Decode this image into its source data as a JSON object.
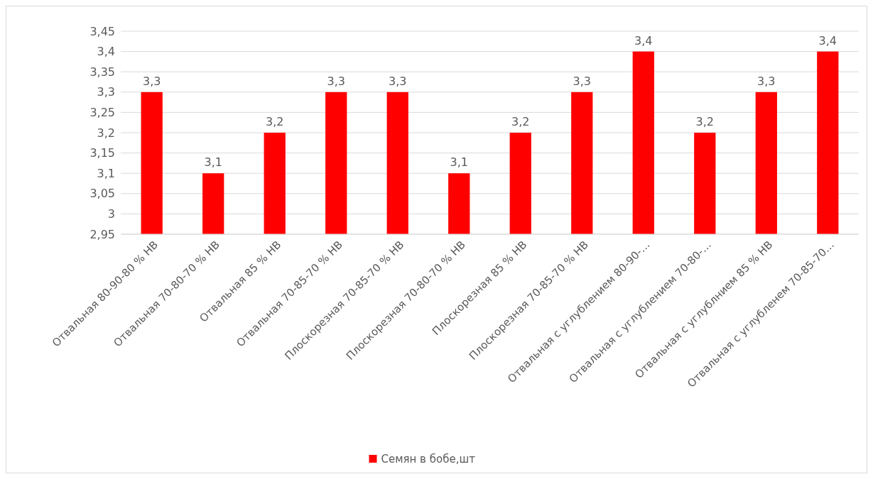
{
  "chart_data": {
    "type": "bar",
    "categories": [
      "Отвальная 80-90-80 % НВ",
      "Отвальная 70-80-70 % НВ",
      "Отвальная 85 % НВ",
      "Отвальная 70-85-70 % НВ",
      "Плоскорезная 70-85-70 % НВ",
      "Плоскорезная 70-80-70 % НВ",
      "Плоскорезная 85 % НВ",
      "Плоскорезная 70-85-70 % НВ",
      "Отвальная с углублением 80-90-…",
      "Отвальная с углублением 70-80-…",
      "Отвальная с углублнием 85 % НВ",
      "Отвальная с углубленем 70-85-70…"
    ],
    "series": [
      {
        "name": "Семян в бобе,шт",
        "color": "#ff0000",
        "values": [
          3.3,
          3.1,
          3.2,
          3.3,
          3.3,
          3.1,
          3.2,
          3.3,
          3.4,
          3.2,
          3.3,
          3.4
        ],
        "value_labels": [
          "3,3",
          "3,1",
          "3,2",
          "3,3",
          "3,3",
          "3,1",
          "3,2",
          "3,3",
          "3,4",
          "3,2",
          "3,3",
          "3,4"
        ]
      }
    ],
    "ylim": [
      2.95,
      3.45
    ],
    "yticks": [
      {
        "value": 2.95,
        "label": "2,95"
      },
      {
        "value": 3,
        "label": "3"
      },
      {
        "value": 3.05,
        "label": "3,05"
      },
      {
        "value": 3.1,
        "label": "3,1"
      },
      {
        "value": 3.15,
        "label": "3,15"
      },
      {
        "value": 3.2,
        "label": "3,2"
      },
      {
        "value": 3.25,
        "label": "3,25"
      },
      {
        "value": 3.3,
        "label": "3,3"
      },
      {
        "value": 3.35,
        "label": "3,35"
      },
      {
        "value": 3.4,
        "label": "3,4"
      },
      {
        "value": 3.45,
        "label": "3,45"
      }
    ],
    "grid": "y",
    "legend": "bottom"
  }
}
